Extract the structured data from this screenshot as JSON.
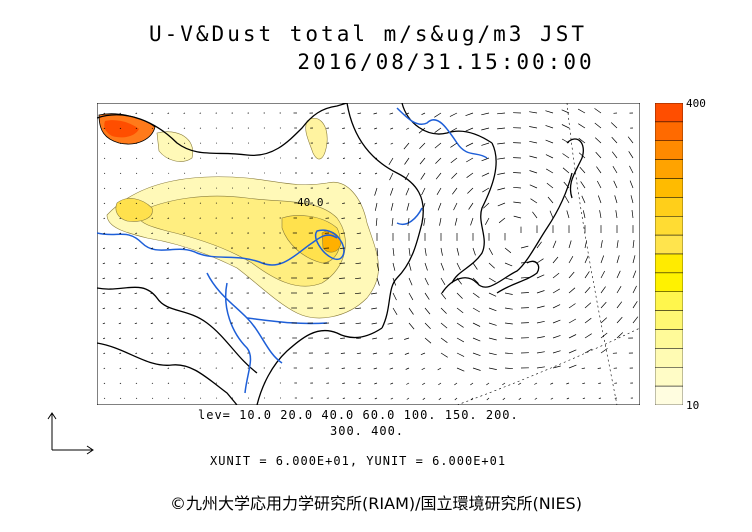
{
  "title": {
    "line1": "U-V&Dust total m/s&ug/m3 JST",
    "line2": "2016/08/31.15:00:00"
  },
  "levels": {
    "line1": "lev= 10.0 20.0 40.0 60.0 100. 150. 200.",
    "line2": "300. 400."
  },
  "units": "XUNIT = 6.000E+01, YUNIT = 6.000E+01",
  "credit": "©九州大学応用力学研究所(RIAM)/国立環境研究所(NIES)",
  "map_label": "40.0",
  "colorbar": {
    "max_label": "400",
    "min_label": "10",
    "colors": [
      "#ff4e00",
      "#ff6a00",
      "#ff8a00",
      "#ffa300",
      "#ffbb00",
      "#ffcf1a",
      "#ffdc33",
      "#ffe44d",
      "#ffeb00",
      "#fff200",
      "#fff64d",
      "#fff873",
      "#fffa99",
      "#fffbb3",
      "#fffcc6",
      "#fffde0"
    ]
  },
  "colors": {
    "coast": "#000000",
    "river": "#1e5fd8",
    "dust_low": "#fff9b8",
    "dust_mid": "#ffe66b",
    "dust_high": "#ff5a00"
  }
}
